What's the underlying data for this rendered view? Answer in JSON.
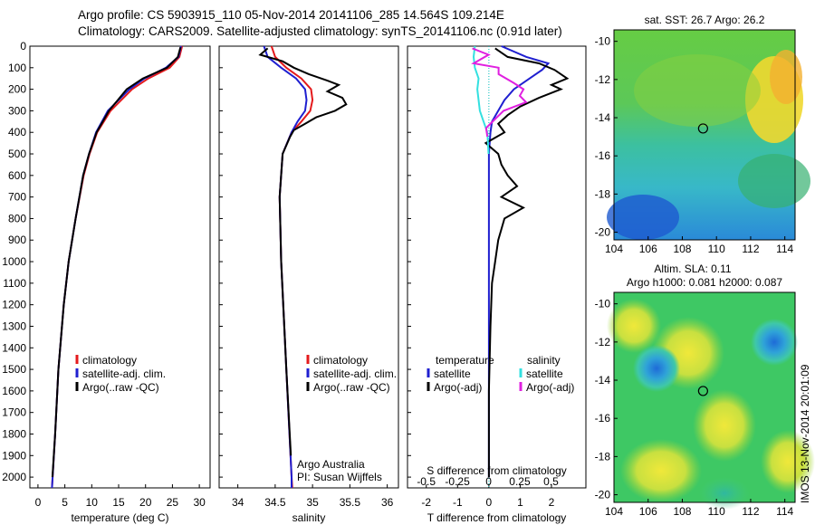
{
  "header": {
    "line1": "Argo profile: CS 5903915_110 05-Nov-2014 20141106_285 14.564S 109.214E",
    "line2": "Climatology: CARS2009. Satellite-adjusted climatology: synTS_20141106.nc (0.91d later)"
  },
  "side_text": "IMOS 13-Nov-2014 20:01:09",
  "colors": {
    "climatology": "#e41a1c",
    "satellite": "#1f1fd0",
    "argo": "#000000",
    "sal_sat": "#33e0e0",
    "sal_argo": "#e020e0"
  },
  "chart_data": [
    {
      "type": "line",
      "id": "temperature",
      "xlabel": "temperature (deg C)",
      "ylabel": "",
      "xlim": [
        -1.5,
        32
      ],
      "ylim": [
        2050,
        0
      ],
      "xticks": [
        "0",
        "5",
        "10",
        "15",
        "20",
        "25",
        "30"
      ],
      "yticks": [
        "0",
        "100",
        "200",
        "300",
        "400",
        "500",
        "600",
        "700",
        "800",
        "900",
        "1000",
        "1100",
        "1200",
        "1300",
        "1400",
        "1500",
        "1600",
        "1700",
        "1800",
        "1900",
        "2000"
      ],
      "legend": [
        "climatology",
        "satellite-adj. clim.",
        "Argo(..raw -QC)"
      ],
      "series": [
        {
          "name": "climatology",
          "depth": [
            0,
            50,
            100,
            150,
            200,
            300,
            400,
            500,
            600,
            800,
            1000,
            1200,
            1500,
            1800,
            2050
          ],
          "values": [
            26.8,
            26.3,
            24.5,
            20.5,
            17.5,
            13.5,
            11,
            9.6,
            8.5,
            7.0,
            5.7,
            4.8,
            3.8,
            3.2,
            2.6
          ]
        },
        {
          "name": "satellite-adj. clim.",
          "depth": [
            0,
            50,
            100,
            150,
            200,
            300,
            400,
            500,
            600,
            800,
            1000,
            1200,
            1500,
            1800,
            2050
          ],
          "values": [
            26.6,
            26.1,
            23.8,
            19.8,
            17.0,
            13.0,
            10.8,
            9.5,
            8.4,
            7.0,
            5.7,
            4.8,
            3.8,
            3.2,
            2.6
          ]
        },
        {
          "name": "Argo(..raw -QC)",
          "depth": [
            5,
            50,
            100,
            150,
            200,
            300,
            400,
            500,
            600,
            800,
            1000,
            1200,
            1500,
            1800,
            2000
          ],
          "values": [
            26.5,
            26.0,
            24.0,
            19.5,
            16.5,
            13.2,
            10.9,
            9.5,
            8.4,
            7.0,
            5.7,
            4.8,
            3.8,
            3.2,
            2.7
          ]
        }
      ]
    },
    {
      "type": "line",
      "id": "salinity",
      "xlabel": "salinity",
      "xlim": [
        33.75,
        36.15
      ],
      "ylim": [
        2050,
        0
      ],
      "xticks": [
        "34",
        "34.5",
        "35",
        "35.5",
        "36"
      ],
      "legend": [
        "climatology",
        "satellite-adj. clim.",
        "Argo(..raw -QC)"
      ],
      "note1": "Argo Australia",
      "note2": "PI: Susan Wijffels",
      "series": [
        {
          "name": "climatology",
          "depth": [
            0,
            50,
            100,
            150,
            200,
            250,
            300,
            350,
            400,
            500,
            700,
            1000,
            1500,
            2000,
            2050
          ],
          "values": [
            34.45,
            34.5,
            34.65,
            34.85,
            34.98,
            35.0,
            34.97,
            34.85,
            34.72,
            34.6,
            34.56,
            34.58,
            34.65,
            34.72,
            34.73
          ]
        },
        {
          "name": "satellite-adj. clim.",
          "depth": [
            0,
            50,
            100,
            150,
            200,
            250,
            300,
            350,
            400,
            500,
            700,
            1000,
            1500,
            2000,
            2050
          ],
          "values": [
            34.35,
            34.4,
            34.58,
            34.78,
            34.9,
            34.92,
            34.9,
            34.8,
            34.72,
            34.6,
            34.56,
            34.58,
            34.65,
            34.72,
            34.72
          ]
        },
        {
          "name": "Argo(..raw -QC)",
          "depth": [
            10,
            40,
            70,
            100,
            130,
            160,
            180,
            210,
            240,
            270,
            300,
            330,
            360,
            390,
            420,
            500,
            700,
            1000,
            1500,
            1900
          ],
          "values": [
            34.4,
            34.3,
            34.6,
            34.75,
            34.95,
            35.2,
            35.35,
            35.2,
            35.4,
            35.45,
            35.3,
            35.05,
            34.9,
            34.75,
            34.7,
            34.6,
            34.56,
            34.58,
            34.65,
            34.71
          ]
        }
      ]
    },
    {
      "type": "line",
      "id": "difference",
      "xlabel": "T difference from climatology",
      "xlabel_top": "S difference from climatology",
      "xlim": [
        -2.6,
        3.1
      ],
      "ylim": [
        2050,
        0
      ],
      "xticks": [
        "-2",
        "-1",
        "0",
        "1",
        "2"
      ],
      "xticks_top": [
        "-0.5",
        "-0.25",
        "0",
        "0.25",
        "0.5"
      ],
      "legend": [
        "temperature",
        "satellite",
        "Argo(-adj)",
        "salinity",
        "satellite",
        "Argo(-adj)"
      ],
      "series": [
        {
          "name": "T satellite",
          "depth": [
            0,
            50,
            80,
            110,
            150,
            200,
            250,
            300,
            350,
            400,
            500,
            800,
            1200,
            2000
          ],
          "values": [
            0.4,
            1.2,
            1.9,
            1.7,
            1.3,
            0.8,
            0.5,
            0.3,
            0.1,
            0.05,
            0,
            0,
            0,
            0
          ]
        },
        {
          "name": "T Argo(-adj)",
          "depth": [
            10,
            50,
            80,
            110,
            150,
            180,
            200,
            240,
            280,
            320,
            360,
            400,
            450,
            500,
            550,
            600,
            650,
            700,
            750,
            800,
            900,
            1000,
            1100,
            1300,
            1600,
            2000
          ],
          "values": [
            0.2,
            0.6,
            1.6,
            2.1,
            2.5,
            2.0,
            2.3,
            1.6,
            1.0,
            0.6,
            0.3,
            0.5,
            -0.1,
            0.3,
            0.4,
            0.6,
            0.9,
            0.4,
            1.1,
            0.5,
            0.3,
            0.2,
            0.1,
            0.05,
            0,
            0
          ]
        },
        {
          "name": "S satellite",
          "depth": [
            0,
            50,
            100,
            150,
            200,
            250,
            300,
            350,
            400,
            500
          ],
          "values": [
            -0.11,
            -0.12,
            -0.11,
            -0.08,
            -0.09,
            -0.08,
            -0.07,
            -0.04,
            -0.01,
            0
          ]
        },
        {
          "name": "S Argo(-adj)",
          "depth": [
            10,
            40,
            80,
            100,
            130,
            170,
            200,
            230,
            260,
            300,
            340,
            380,
            420
          ],
          "values": [
            -0.13,
            0.0,
            -0.12,
            0.08,
            0.08,
            0.2,
            0.28,
            0.25,
            0.3,
            0.12,
            0.05,
            -0.02,
            -0.01
          ]
        }
      ]
    },
    {
      "type": "heatmap",
      "id": "sst_map",
      "title": "sat. SST: 26.7  Argo: 26.2",
      "xticks": [
        "104",
        "106",
        "108",
        "110",
        "112",
        "114"
      ],
      "yticks": [
        "-10",
        "-12",
        "-14",
        "-16",
        "-18",
        "-20"
      ],
      "xlim": [
        104,
        114.6
      ],
      "ylim": [
        -20.4,
        -9.4
      ],
      "argo_point": [
        109.214,
        -14.564
      ]
    },
    {
      "type": "heatmap",
      "id": "sla_map",
      "title1": "Altim. SLA: 0.11",
      "title2": "Argo h1000: 0.081 h2000: 0.087",
      "xticks": [
        "104",
        "106",
        "108",
        "110",
        "112",
        "114"
      ],
      "yticks": [
        "-10",
        "-12",
        "-14",
        "-16",
        "-18",
        "-20"
      ],
      "xlim": [
        104,
        114.6
      ],
      "ylim": [
        -20.4,
        -9.4
      ],
      "argo_point": [
        109.214,
        -14.564
      ]
    }
  ]
}
